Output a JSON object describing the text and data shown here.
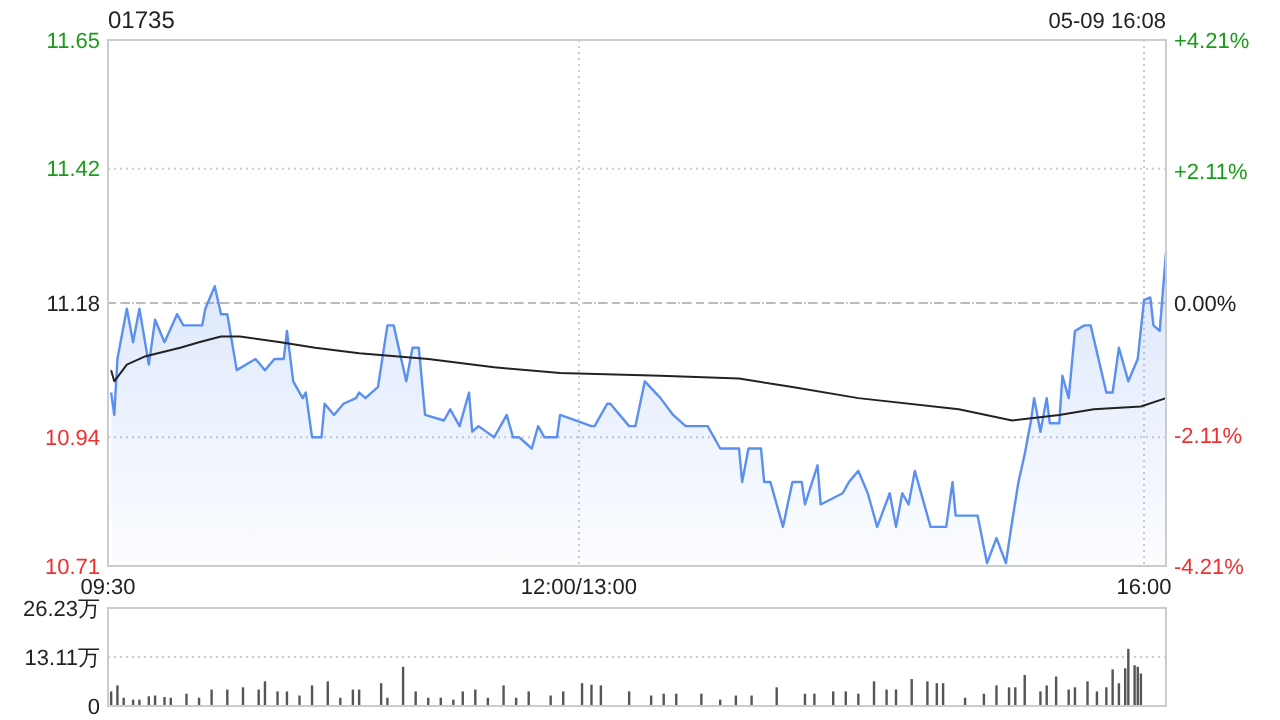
{
  "chart_data": [
    {
      "type": "area",
      "title": "01735",
      "subtitle": "05-09 16:08",
      "categories": [
        "09:30",
        null,
        null,
        null,
        null,
        null,
        null,
        null,
        null,
        null,
        null,
        null,
        null,
        null,
        null,
        null,
        null,
        null,
        null,
        null,
        null,
        null,
        null,
        null,
        null,
        null,
        null,
        null,
        null,
        null,
        null,
        null,
        null,
        null,
        null,
        null,
        null,
        null,
        null,
        null,
        null,
        null,
        null,
        null,
        null,
        null,
        null,
        null,
        null,
        null,
        null,
        null,
        null,
        null,
        null,
        null,
        null,
        null,
        null,
        null,
        null,
        null,
        null,
        null,
        null,
        null,
        null,
        null,
        null,
        null,
        null,
        null,
        null,
        null,
        null,
        null,
        null,
        null,
        null,
        null,
        null,
        null,
        null,
        null,
        null,
        null,
        null,
        null,
        null,
        null,
        null,
        null,
        null,
        null,
        null,
        null,
        null,
        null,
        null,
        null,
        null,
        null,
        null,
        null,
        null,
        null,
        null,
        null,
        null,
        null,
        null,
        null,
        null,
        null,
        null,
        null,
        null,
        null,
        null,
        null,
        null,
        null,
        null,
        null,
        null,
        null,
        null,
        null,
        null,
        null,
        null,
        null,
        null,
        null,
        null,
        null,
        null,
        null,
        null,
        null,
        null,
        null,
        null,
        null,
        null,
        null,
        null,
        null,
        null,
        null,
        "12:00/13:00",
        null,
        null,
        null,
        null,
        null,
        null,
        null,
        null,
        null,
        null,
        null,
        null,
        null,
        null,
        null,
        null,
        null,
        null,
        null,
        null,
        null,
        null,
        null,
        null,
        null,
        null,
        null,
        null,
        null,
        null,
        null,
        null,
        null,
        null,
        null,
        null,
        null,
        null,
        null,
        null,
        null,
        null,
        null,
        null,
        null,
        null,
        null,
        null,
        null,
        null,
        null,
        null,
        null,
        null,
        null,
        null,
        null,
        null,
        null,
        null,
        null,
        null,
        null,
        null,
        null,
        null,
        null,
        null,
        null,
        null,
        null,
        null,
        null,
        null,
        null,
        null,
        null,
        null,
        null,
        null,
        null,
        null,
        null,
        null,
        null,
        null,
        null,
        null,
        null,
        null,
        null,
        null,
        null,
        null,
        null,
        null,
        null,
        null,
        null,
        null,
        null,
        null,
        null,
        null,
        null,
        null,
        null,
        null,
        null,
        null,
        null,
        null,
        null,
        null,
        null,
        null,
        null,
        null,
        null,
        null,
        null,
        null,
        null,
        null,
        null,
        null,
        null,
        null,
        null,
        null,
        null,
        null,
        null,
        null,
        null,
        null,
        null,
        null,
        null,
        null,
        null,
        null,
        null,
        null,
        null,
        null,
        null,
        null,
        null,
        null,
        null,
        null,
        null,
        null,
        null,
        null,
        null,
        null,
        null,
        null,
        null,
        null,
        null,
        null,
        null,
        null,
        null,
        null,
        null,
        null,
        null,
        null,
        null,
        null,
        null,
        null,
        null,
        null,
        null,
        "16:00",
        null,
        null,
        null,
        null,
        null,
        null,
        null
      ],
      "ylim": [
        10.71,
        11.65
      ],
      "yticks": [
        10.71,
        10.94,
        11.18,
        11.42,
        11.65
      ],
      "y2lim": [
        -4.21,
        4.21
      ],
      "y2ticks": [
        {
          "value": -4.21,
          "label": "-4.21%"
        },
        {
          "value": -2.11,
          "label": "-2.11%"
        },
        {
          "value": 0,
          "label": "0.00%"
        },
        {
          "value": 2.11,
          "label": "+2.11%"
        },
        {
          "value": 4.21,
          "label": "+4.21%"
        }
      ],
      "grid": true,
      "ref_lines": [
        {
          "axis": "y",
          "value": 11.18,
          "color": "#bbbbbb",
          "line_style": "dashed"
        }
      ],
      "series": [
        {
          "color": "#5b8ff0",
          "values": [
            null,
            11.02,
            10.98,
            11.08,
            null,
            null,
            11.17,
            null,
            11.11,
            null,
            11.17,
            null,
            null,
            11.07,
            null,
            11.15,
            null,
            null,
            11.11,
            null,
            null,
            null,
            11.16,
            null,
            11.14,
            null,
            null,
            null,
            null,
            null,
            11.14,
            11.17,
            null,
            null,
            11.21,
            null,
            11.16,
            null,
            11.16,
            null,
            null,
            11.06,
            null,
            null,
            null,
            null,
            null,
            11.08,
            null,
            null,
            11.06,
            null,
            null,
            11.08,
            null,
            null,
            11.08,
            11.13,
            null,
            11.04,
            null,
            null,
            11.01,
            11.02,
            null,
            10.94,
            null,
            null,
            10.94,
            11.0,
            null,
            null,
            10.98,
            null,
            null,
            11.0,
            null,
            null,
            null,
            11.01,
            11.02,
            null,
            11.01,
            null,
            null,
            null,
            11.03,
            null,
            null,
            11.14,
            null,
            11.14,
            null,
            null,
            null,
            11.04,
            null,
            11.1,
            null,
            11.1,
            null,
            10.98,
            null,
            null,
            null,
            null,
            null,
            10.97,
            null,
            10.99,
            null,
            null,
            10.96,
            null,
            null,
            11.02,
            10.95,
            null,
            10.96,
            null,
            null,
            null,
            null,
            10.94,
            null,
            null,
            null,
            10.98,
            null,
            10.94,
            null,
            10.94,
            null,
            null,
            null,
            10.92,
            null,
            10.96,
            null,
            10.94,
            null,
            null,
            null,
            10.94,
            10.98,
            null,
            null,
            null,
            null,
            null,
            null,
            null,
            null,
            null,
            10.96,
            10.96,
            null,
            null,
            null,
            11.0,
            11.0,
            null,
            null,
            null,
            null,
            null,
            10.96,
            null,
            10.96,
            null,
            null,
            11.04,
            null,
            null,
            null,
            null,
            11.01,
            null,
            null,
            null,
            10.98,
            null,
            null,
            null,
            10.96,
            null,
            null,
            null,
            null,
            null,
            null,
            10.96,
            null,
            null,
            null,
            10.92,
            null,
            null,
            null,
            null,
            null,
            10.92,
            10.86,
            null,
            10.92,
            null,
            null,
            null,
            10.92,
            10.86,
            null,
            10.86,
            null,
            null,
            null,
            10.78,
            null,
            null,
            10.86,
            null,
            null,
            10.86,
            10.82,
            null,
            null,
            null,
            10.89,
            10.82,
            null,
            null,
            null,
            null,
            null,
            null,
            10.84,
            null,
            10.86,
            null,
            null,
            10.88,
            null,
            null,
            10.84,
            null,
            null,
            10.78,
            null,
            null,
            null,
            10.84,
            null,
            10.78,
            null,
            10.84,
            null,
            10.82,
            null,
            10.88,
            null,
            null,
            10.82,
            null,
            10.78,
            null,
            null,
            null,
            null,
            10.78,
            null,
            10.86,
            10.8,
            null,
            null,
            null,
            null,
            null,
            null,
            10.8,
            null,
            null,
            10.715,
            null,
            null,
            10.76,
            null,
            null,
            10.715,
            null,
            10.79,
            null,
            10.86,
            null,
            10.91,
            null,
            10.97,
            11.01,
            null,
            10.95,
            null,
            11.01,
            10.965,
            null,
            null,
            10.965,
            11.05,
            null,
            11.01,
            null,
            11.13,
            null,
            null,
            11.14,
            null,
            11.14,
            null,
            null,
            null,
            null,
            11.02,
            null,
            11.02,
            null,
            11.1,
            null,
            null,
            11.04,
            null,
            null,
            11.08,
            null,
            11.185,
            null,
            11.19,
            11.14,
            null,
            11.13,
            null,
            11.27
          ]
        },
        {
          "type": "line",
          "color": "#222222",
          "values": [
            null,
            11.06,
            11.04,
            null,
            null,
            null,
            11.07,
            null,
            null,
            null,
            null,
            null,
            11.085,
            null,
            null,
            null,
            null,
            null,
            null,
            null,
            null,
            null,
            null,
            11.1,
            null,
            null,
            null,
            null,
            null,
            11.11,
            null,
            null,
            null,
            null,
            null,
            null,
            11.12,
            null,
            null,
            null,
            null,
            null,
            11.12,
            null,
            null,
            null,
            null,
            null,
            null,
            null,
            null,
            null,
            null,
            null,
            null,
            11.11,
            null,
            null,
            null,
            null,
            null,
            null,
            null,
            null,
            null,
            null,
            11.1,
            null,
            null,
            null,
            null,
            null,
            null,
            null,
            null,
            null,
            null,
            null,
            null,
            null,
            11.09,
            null,
            null,
            null,
            null,
            null,
            null,
            null,
            null,
            null,
            null,
            null,
            null,
            null,
            null,
            null,
            null,
            null,
            null,
            null,
            null,
            null,
            11.08,
            null,
            null,
            null,
            null,
            null,
            null,
            null,
            null,
            null,
            null,
            null,
            null,
            null,
            null,
            null,
            null,
            null,
            null,
            null,
            null,
            11.065,
            null,
            null,
            null,
            null,
            null,
            null,
            null,
            null,
            null,
            null,
            null,
            null,
            null,
            null,
            null,
            null,
            null,
            null,
            null,
            null,
            11.055,
            null,
            null,
            null,
            null,
            null,
            null,
            null,
            null,
            null,
            null,
            null,
            null,
            null,
            null,
            null,
            null,
            null,
            null,
            null,
            null,
            null,
            null,
            null,
            null,
            null,
            null,
            null,
            null,
            null,
            null,
            null,
            11.05,
            null,
            null,
            null,
            null,
            null,
            null,
            null,
            null,
            null,
            null,
            null,
            null,
            null,
            null,
            null,
            null,
            null,
            null,
            null,
            null,
            null,
            null,
            null,
            null,
            11.045,
            null,
            null,
            null,
            null,
            null,
            null,
            null,
            null,
            null,
            null,
            null,
            null,
            null,
            null,
            null,
            null,
            11.03,
            null,
            null,
            null,
            null,
            null,
            null,
            null,
            null,
            null,
            null,
            null,
            null,
            null,
            null,
            null,
            null,
            null,
            null,
            null,
            null,
            11.01,
            null,
            null,
            null,
            null,
            null,
            null,
            null,
            null,
            null,
            null,
            null,
            null,
            null,
            null,
            null,
            null,
            null,
            null,
            null,
            null,
            null,
            null,
            null,
            null,
            null,
            null,
            null,
            null,
            null,
            null,
            null,
            10.99,
            null,
            null,
            null,
            null,
            null,
            null,
            null,
            null,
            null,
            null,
            null,
            null,
            null,
            null,
            null,
            null,
            10.97,
            null,
            null,
            null,
            null,
            null,
            null,
            null,
            null,
            null,
            null,
            null,
            null,
            null,
            null,
            10.98,
            null,
            null,
            null,
            null,
            null,
            null,
            null,
            null,
            null,
            null,
            10.99,
            null,
            null,
            null,
            null,
            null,
            null,
            null,
            null,
            null,
            null,
            null,
            null,
            null,
            null,
            10.995,
            null,
            null,
            null,
            null,
            null,
            null,
            null,
            11.01
          ]
        }
      ]
    },
    {
      "type": "bar",
      "ylim": [
        0,
        26.23
      ],
      "yticks": [
        0,
        {
          "value": 13.11,
          "label": "13.11万"
        },
        {
          "value": 26.23,
          "label": "26.23万"
        }
      ],
      "grid": "y",
      "tick_labels": "y",
      "categories": [
        null,
        null,
        null,
        null,
        null,
        null,
        null,
        null,
        null,
        null,
        null,
        null,
        null,
        null,
        null,
        null,
        null,
        null,
        null,
        null,
        null,
        null,
        null,
        null,
        null,
        null,
        null,
        null,
        null,
        null,
        null,
        null,
        null,
        null,
        null,
        null,
        null,
        null,
        null,
        null,
        null,
        null,
        null,
        null,
        null,
        null,
        null,
        null,
        null,
        null,
        null,
        null,
        null,
        null,
        null,
        null,
        null,
        null,
        null,
        null,
        null,
        null,
        null,
        null,
        null,
        null,
        null,
        null,
        null,
        null,
        null,
        null,
        null,
        null,
        null,
        null,
        null,
        null,
        null,
        null,
        null,
        null,
        null,
        null,
        null,
        null,
        null,
        null,
        null,
        null,
        null,
        null,
        null,
        null,
        null,
        null,
        null,
        null,
        null,
        null,
        null,
        null,
        null,
        null,
        null,
        null,
        null,
        null,
        null,
        null,
        null,
        null,
        null,
        null,
        null,
        null,
        null,
        null,
        null,
        null,
        null,
        null,
        null,
        null,
        null,
        null,
        null,
        null,
        null,
        null,
        null,
        null,
        null,
        null,
        null,
        null,
        null,
        null,
        null,
        null,
        null,
        null,
        null,
        null,
        null,
        null,
        null,
        null,
        null,
        null,
        null,
        null,
        null,
        null,
        null,
        null,
        null,
        null,
        null,
        null,
        null,
        null,
        null,
        null,
        null,
        null,
        null,
        null,
        null,
        null,
        null,
        null,
        null,
        null,
        null,
        null,
        null,
        null,
        null,
        null,
        null,
        null,
        null,
        null,
        null,
        null,
        null,
        null,
        null,
        null,
        null,
        null,
        null,
        null,
        null,
        null,
        null,
        null,
        null,
        null,
        null,
        null,
        null,
        null,
        null,
        null,
        null,
        null,
        null,
        null,
        null,
        null,
        null,
        null,
        null,
        null,
        null,
        null,
        null,
        null,
        null,
        null,
        null,
        null,
        null,
        null,
        null,
        null,
        null,
        null,
        null,
        null,
        null,
        null,
        null,
        null,
        null,
        null,
        null,
        null,
        null,
        null,
        null,
        null,
        null,
        null,
        null,
        null,
        null,
        null,
        null,
        null,
        null,
        null,
        null,
        null,
        null,
        null,
        null,
        null,
        null,
        null,
        null,
        null,
        null,
        null,
        null,
        null,
        null,
        null,
        null,
        null,
        null,
        null,
        null,
        null,
        null,
        null,
        null,
        null,
        null,
        null,
        null,
        null,
        null,
        null,
        null,
        null,
        null,
        null,
        null,
        null,
        null,
        null,
        null,
        null,
        null,
        null,
        null,
        null,
        null,
        null,
        null,
        null,
        null,
        null,
        null,
        null,
        null,
        null,
        null,
        null,
        null,
        null,
        null,
        null,
        null,
        null,
        null,
        null,
        null,
        null,
        null,
        null,
        null,
        null,
        null,
        null,
        null,
        null,
        null,
        null,
        null,
        null,
        null,
        null,
        null,
        null
      ],
      "series": [
        {
          "color": "#555555",
          "values": [
            null,
            3.9,
            null,
            5.5,
            null,
            2.2,
            null,
            null,
            1.7,
            null,
            1.7,
            null,
            null,
            2.6,
            null,
            2.8,
            null,
            null,
            2.4,
            null,
            2.2,
            null,
            null,
            null,
            null,
            3.3,
            null,
            null,
            null,
            2.2,
            null,
            null,
            null,
            4.4,
            null,
            null,
            null,
            null,
            4.4,
            null,
            null,
            null,
            null,
            5.0,
            null,
            null,
            null,
            null,
            4.4,
            null,
            6.6,
            null,
            null,
            null,
            3.9,
            null,
            null,
            3.9,
            null,
            null,
            null,
            2.8,
            null,
            null,
            null,
            5.5,
            null,
            null,
            null,
            null,
            6.6,
            null,
            null,
            null,
            2.2,
            null,
            null,
            null,
            4.4,
            null,
            4.4,
            null,
            null,
            null,
            null,
            null,
            null,
            6.1,
            null,
            2.2,
            null,
            null,
            null,
            null,
            10.5,
            null,
            null,
            null,
            3.9,
            null,
            null,
            null,
            2.2,
            null,
            null,
            null,
            2.2,
            null,
            null,
            null,
            1.7,
            null,
            null,
            3.9,
            null,
            null,
            null,
            4.4,
            null,
            null,
            null,
            2.2,
            null,
            null,
            null,
            null,
            5.5,
            null,
            null,
            null,
            2.2,
            null,
            null,
            null,
            3.9,
            null,
            null,
            null,
            null,
            null,
            null,
            2.8,
            null,
            null,
            null,
            3.9,
            null,
            null,
            null,
            null,
            null,
            6.1,
            null,
            null,
            5.7,
            null,
            null,
            5.5,
            null,
            null,
            null,
            null,
            null,
            null,
            null,
            null,
            3.9,
            null,
            null,
            null,
            null,
            null,
            null,
            2.8,
            null,
            null,
            null,
            3.3,
            null,
            null,
            null,
            3.3,
            null,
            null,
            null,
            null,
            null,
            null,
            null,
            3.3,
            null,
            null,
            null,
            null,
            null,
            1.7,
            null,
            null,
            null,
            null,
            2.8,
            null,
            null,
            null,
            null,
            2.8,
            null,
            null,
            null,
            null,
            null,
            null,
            null,
            5.0,
            null,
            null,
            null,
            null,
            null,
            null,
            null,
            null,
            3.3,
            null,
            null,
            3.3,
            null,
            null,
            null,
            null,
            null,
            3.9,
            null,
            null,
            null,
            3.9,
            null,
            null,
            null,
            3.3,
            null,
            null,
            null,
            null,
            6.6,
            null,
            null,
            null,
            4.4,
            null,
            null,
            4.4,
            null,
            null,
            null,
            null,
            7.2,
            null,
            null,
            null,
            null,
            6.6,
            null,
            null,
            6.1,
            null,
            6.1,
            null,
            null,
            null,
            null,
            null,
            null,
            2.2,
            null,
            null,
            null,
            null,
            null,
            3.3,
            null,
            null,
            null,
            5.5,
            null,
            null,
            null,
            5.0,
            null,
            5.0,
            null,
            null,
            8.3,
            null,
            null,
            null,
            null,
            3.9,
            null,
            5.5,
            null,
            null,
            7.9,
            null,
            null,
            null,
            4.4,
            null,
            5.0,
            null,
            null,
            null,
            6.6,
            null,
            null,
            3.9,
            null,
            null,
            5.0,
            null,
            9.8,
            null,
            6.1,
            null,
            10.1,
            15.3,
            null,
            10.9,
            10.5,
            8.7,
            null,
            null,
            null,
            null,
            null,
            null,
            null,
            null
          ]
        }
      ]
    }
  ]
}
